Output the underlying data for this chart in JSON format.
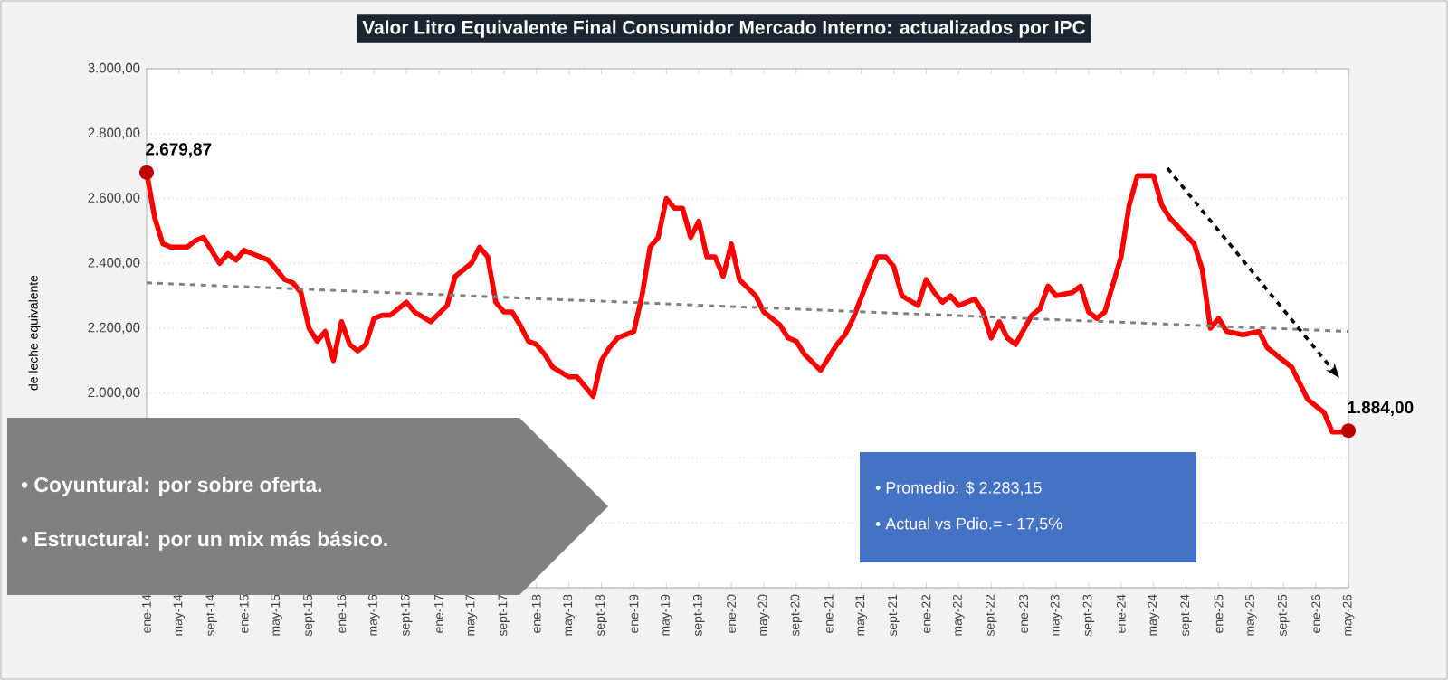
{
  "chart_data": {
    "type": "line",
    "title": "Valor Litro Equivalente Final Consumidor Mercado Interno: actualizados por IPC",
    "ylabel": "de leche equivalente",
    "xlim": [
      "2014-01",
      "2026-05"
    ],
    "ylim": [
      1400,
      3000
    ],
    "yticks": [
      {
        "value": 1400,
        "label": null
      },
      {
        "value": 1600,
        "label": null
      },
      {
        "value": 1800,
        "label": null
      },
      {
        "value": 2000,
        "label": "2.000,00"
      },
      {
        "value": 2200,
        "label": "2.200,00"
      },
      {
        "value": 2400,
        "label": "2.400,00"
      },
      {
        "value": 2600,
        "label": "2.600,00"
      },
      {
        "value": 2800,
        "label": "2.800,00"
      },
      {
        "value": 3000,
        "label": "3.000,00"
      }
    ],
    "xticks": [
      {
        "value": "2014-01",
        "label": "ene-14"
      },
      {
        "value": "2014-05",
        "label": "may-14"
      },
      {
        "value": "2014-09",
        "label": "sept-14"
      },
      {
        "value": "2015-01",
        "label": "ene-15"
      },
      {
        "value": "2015-05",
        "label": "may-15"
      },
      {
        "value": "2015-09",
        "label": "sept-15"
      },
      {
        "value": "2016-01",
        "label": "ene-16"
      },
      {
        "value": "2016-05",
        "label": "may-16"
      },
      {
        "value": "2016-09",
        "label": "sept-16"
      },
      {
        "value": "2017-01",
        "label": "ene-17"
      },
      {
        "value": "2017-05",
        "label": "may-17"
      },
      {
        "value": "2017-09",
        "label": "sept-17"
      },
      {
        "value": "2018-01",
        "label": "ene-18"
      },
      {
        "value": "2018-05",
        "label": "may-18"
      },
      {
        "value": "2018-09",
        "label": "sept-18"
      },
      {
        "value": "2019-01",
        "label": "ene-19"
      },
      {
        "value": "2019-05",
        "label": "may-19"
      },
      {
        "value": "2019-09",
        "label": "sept-19"
      },
      {
        "value": "2020-01",
        "label": "ene-20"
      },
      {
        "value": "2020-05",
        "label": "may-20"
      },
      {
        "value": "2020-09",
        "label": "sept-20"
      },
      {
        "value": "2021-01",
        "label": "ene-21"
      },
      {
        "value": "2021-05",
        "label": "may-21"
      },
      {
        "value": "2021-09",
        "label": "sept-21"
      },
      {
        "value": "2022-01",
        "label": "ene-22"
      },
      {
        "value": "2022-05",
        "label": "may-22"
      },
      {
        "value": "2022-09",
        "label": "sept-22"
      },
      {
        "value": "2023-01",
        "label": "ene-23"
      },
      {
        "value": "2023-05",
        "label": "may-23"
      },
      {
        "value": "2023-09",
        "label": "sept-23"
      },
      {
        "value": "2024-01",
        "label": "ene-24"
      },
      {
        "value": "2024-05",
        "label": "may-24"
      },
      {
        "value": "2024-09",
        "label": "sept-24"
      },
      {
        "value": "2025-01",
        "label": "ene-25"
      },
      {
        "value": "2025-05",
        "label": "may-25"
      },
      {
        "value": "2025-09",
        "label": "sept-25"
      },
      {
        "value": "2026-01",
        "label": "ene-26"
      },
      {
        "value": "2026-05",
        "label": "may-26"
      }
    ],
    "grid": "y",
    "series": [
      {
        "color": "#ff0000",
        "line_style": "solid",
        "x": [
          "2014-01",
          "2014-02",
          "2014-03",
          "2014-04",
          "2014-06",
          "2014-07",
          "2014-08",
          "2014-09",
          "2014-10",
          "2014-11",
          "2014-12",
          "2015-01",
          "2015-02",
          "2015-04",
          "2015-06",
          "2015-07",
          "2015-08",
          "2015-09",
          "2015-10",
          "2015-11",
          "2015-12",
          "2016-01",
          "2016-02",
          "2016-03",
          "2016-04",
          "2016-05",
          "2016-06",
          "2016-07",
          "2016-09",
          "2016-10",
          "2016-12",
          "2017-02",
          "2017-03",
          "2017-05",
          "2017-06",
          "2017-07",
          "2017-08",
          "2017-09",
          "2017-10",
          "2017-11",
          "2017-12",
          "2018-01",
          "2018-02",
          "2018-03",
          "2018-05",
          "2018-06",
          "2018-08",
          "2018-09",
          "2018-10",
          "2018-11",
          "2018-12",
          "2019-01",
          "2019-02",
          "2019-03",
          "2019-04",
          "2019-05",
          "2019-06",
          "2019-07",
          "2019-08",
          "2019-09",
          "2019-10",
          "2019-11",
          "2019-12",
          "2020-01",
          "2020-02",
          "2020-04",
          "2020-05",
          "2020-07",
          "2020-08",
          "2020-09",
          "2020-10",
          "2020-12",
          "2021-02",
          "2021-03",
          "2021-04",
          "2021-06",
          "2021-07",
          "2021-08",
          "2021-09",
          "2021-10",
          "2021-12",
          "2022-01",
          "2022-02",
          "2022-03",
          "2022-04",
          "2022-05",
          "2022-07",
          "2022-08",
          "2022-09",
          "2022-10",
          "2022-11",
          "2022-12",
          "2023-02",
          "2023-03",
          "2023-04",
          "2023-05",
          "2023-07",
          "2023-08",
          "2023-09",
          "2023-10",
          "2023-11",
          "2024-01",
          "2024-02",
          "2024-03",
          "2024-05",
          "2024-06",
          "2024-07",
          "2024-10",
          "2024-11",
          "2024-12",
          "2025-01",
          "2025-02",
          "2025-04",
          "2025-06",
          "2025-07",
          "2025-10",
          "2025-12",
          "2026-02",
          "2026-03",
          "2026-04",
          "2026-05"
        ],
        "values": [
          2680,
          2540,
          2460,
          2450,
          2450,
          2470,
          2480,
          2440,
          2400,
          2430,
          2410,
          2440,
          2430,
          2410,
          2350,
          2340,
          2310,
          2200,
          2160,
          2190,
          2100,
          2220,
          2150,
          2130,
          2150,
          2230,
          2240,
          2240,
          2280,
          2250,
          2220,
          2270,
          2360,
          2400,
          2450,
          2420,
          2280,
          2250,
          2250,
          2210,
          2160,
          2150,
          2120,
          2080,
          2050,
          2050,
          1990,
          2100,
          2140,
          2170,
          2180,
          2190,
          2300,
          2450,
          2480,
          2600,
          2570,
          2570,
          2480,
          2530,
          2420,
          2420,
          2360,
          2460,
          2350,
          2300,
          2250,
          2210,
          2170,
          2160,
          2120,
          2070,
          2150,
          2180,
          2230,
          2360,
          2420,
          2420,
          2390,
          2300,
          2270,
          2350,
          2310,
          2280,
          2300,
          2270,
          2290,
          2250,
          2170,
          2220,
          2170,
          2150,
          2240,
          2260,
          2330,
          2300,
          2310,
          2330,
          2250,
          2230,
          2250,
          2420,
          2580,
          2670,
          2670,
          2580,
          2540,
          2460,
          2380,
          2200,
          2230,
          2190,
          2180,
          2190,
          2140,
          2080,
          1980,
          1940,
          1880,
          1880,
          1884
        ]
      },
      {
        "type": "line",
        "color": "#808080",
        "line_style": "dashed",
        "x": [
          "2014-01",
          "2026-05"
        ],
        "values": [
          2340,
          2190
        ]
      }
    ],
    "annotations": [
      {
        "text": "2.679,87",
        "x": "2014-01",
        "y": 2680
      },
      {
        "text": "1.884,00",
        "x": "2026-05",
        "y": 1884
      },
      "•  Coyuntural: por sobre oferta.",
      "•  Estructural: por un mix más básico.",
      "•    Promedio: $ 2.283,15",
      "•    Actual vs Pdio.= - 17,5%"
    ]
  }
}
